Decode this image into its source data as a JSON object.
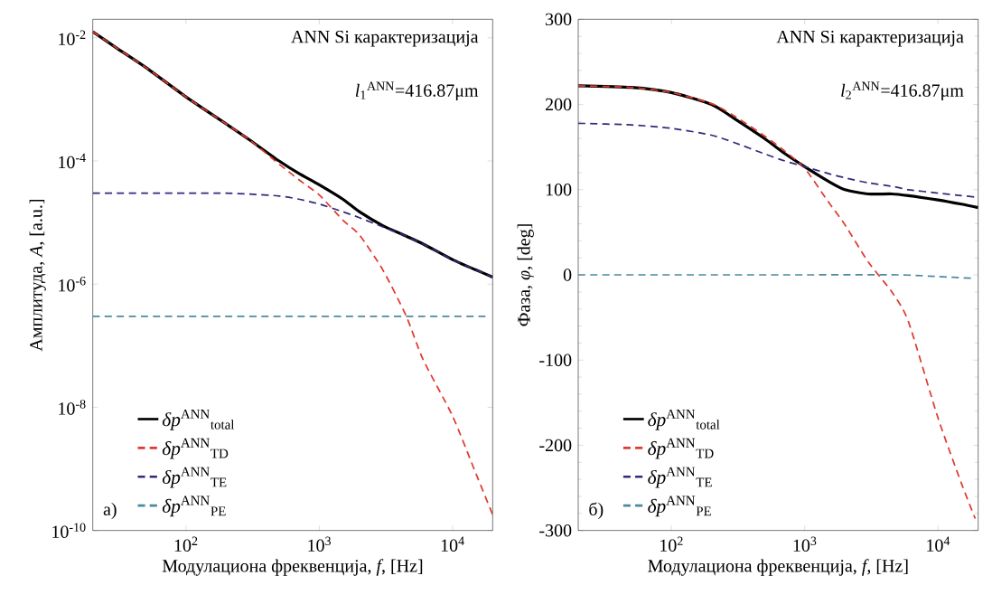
{
  "chart_data": [
    {
      "type": "line",
      "xlabel": "Модулациона фреквенција, *f*, [Hz]",
      "ylabel": "Амплитуда, *A*, [a.u.]",
      "log": "xy",
      "legend": "bottom left",
      "grid": false,
      "xlim": [
        20,
        20000
      ],
      "ylim": [
        1e-10,
        0.02
      ],
      "xticks": [
        {
          "value": 100,
          "label": "10$^{2}$"
        },
        {
          "value": 1000,
          "label": "10$^{3}$"
        },
        {
          "value": 10000,
          "label": "10$^{4}$"
        }
      ],
      "yticks": [
        {
          "value": 1e-10,
          "label": "10$^{-10}$"
        },
        {
          "value": 1e-08,
          "label": "10$^{-8}$"
        },
        {
          "value": 1e-06,
          "label": "10$^{-6}$"
        },
        {
          "value": 0.0001,
          "label": "10$^{-4}$"
        },
        {
          "value": 0.01,
          "label": "10$^{-2}$"
        }
      ],
      "annotations": [
        "ANN Si карактеризација",
        "*l*$_{1}$$^{ANN}$=416.87μm",
        "a)"
      ],
      "x": [
        20,
        30,
        50,
        100,
        200,
        300,
        500,
        700,
        1000,
        1500,
        2000,
        3000,
        4500,
        6000,
        10000,
        15000,
        20000
      ],
      "series": [
        {
          "name": "*δp*$^{ANN}$$_{total}$",
          "color": "#000000",
          "line_style": "solid",
          "values": [
            0.0126,
            0.0069,
            0.0033,
            0.0011,
            0.0004,
            0.00022,
            0.0001,
            6.3e-05,
            4.1e-05,
            2.4e-05,
            1.5e-05,
            8.9e-06,
            6e-06,
            4.5e-06,
            2.5e-06,
            1.7e-06,
            1.3e-06
          ]
        },
        {
          "name": "*δp*$^{ANN}$$_{TD}$",
          "color": "#e03a30",
          "line_style": "dashed",
          "values": [
            0.0126,
            0.0069,
            0.0033,
            0.0011,
            0.0004,
            0.00022,
            8.9e-05,
            5e-05,
            2.8e-05,
            1.1e-05,
            6.3e-06,
            1.7e-06,
            3e-07,
            6e-08,
            7.2e-09,
            8.3e-10,
            1.8e-10
          ]
        },
        {
          "name": "*δp*$^{ANN}$$_{TE}$",
          "color": "#35287a",
          "line_style": "dashed",
          "values": [
            3e-05,
            3e-05,
            3e-05,
            3e-05,
            3e-05,
            2.9e-05,
            2.7e-05,
            2.4e-05,
            2e-05,
            1.5e-05,
            1.2e-05,
            8.5e-06,
            6e-06,
            4.5e-06,
            2.5e-06,
            1.7e-06,
            1.3e-06
          ]
        },
        {
          "name": "*δp*$^{ANN}$$_{PE}$",
          "color": "#4a8aa0",
          "line_style": "dashed",
          "x": [
            20,
            18000
          ],
          "values": [
            3e-07,
            3e-07
          ]
        }
      ]
    },
    {
      "type": "line",
      "xlabel": "Модулациона фреквенција, *f*, [Hz]",
      "ylabel": "Фаза, *φ*, [deg]",
      "log": "x",
      "legend": "bottom left",
      "grid": false,
      "xlim": [
        20,
        20000
      ],
      "ylim": [
        -300,
        300
      ],
      "xticks": [
        {
          "value": 100,
          "label": "10$^{2}$"
        },
        {
          "value": 1000,
          "label": "10$^{3}$"
        },
        {
          "value": 10000,
          "label": "10$^{4}$"
        }
      ],
      "yticks": [
        -300,
        -200,
        -100,
        0,
        100,
        200,
        300
      ],
      "annotations": [
        "ANN Si карактеризација",
        "*l*$_{2}$$^{ANN}$=416.87μm",
        "б)"
      ],
      "x": [
        20,
        50,
        100,
        200,
        300,
        500,
        700,
        1000,
        1500,
        2000,
        3000,
        4500,
        6000,
        10000,
        15000,
        20000
      ],
      "series": [
        {
          "name": "*δp*$^{ANN}$$_{total}$",
          "color": "#000000",
          "line_style": "solid",
          "values": [
            222,
            220,
            214,
            200,
            183,
            160,
            143,
            127,
            110,
            100,
            95,
            95,
            93,
            88,
            83,
            79
          ]
        },
        {
          "name": "*δp*$^{ANN}$$_{TD}$",
          "color": "#e03a30",
          "line_style": "dashed",
          "x": [
            20,
            50,
            100,
            200,
            300,
            500,
            700,
            1000,
            1500,
            2000,
            3000,
            4500,
            6000,
            10000,
            15000,
            19000
          ],
          "values": [
            222,
            220,
            214,
            201,
            186,
            163,
            146,
            125,
            86,
            59,
            15,
            -20,
            -55,
            -168,
            -245,
            -286
          ]
        },
        {
          "name": "*δp*$^{ANN}$$_{TE}$",
          "color": "#35287a",
          "line_style": "dashed",
          "values": [
            178,
            176,
            172,
            164,
            155,
            142,
            134,
            127,
            119,
            114,
            108,
            104,
            100,
            96,
            93,
            91
          ]
        },
        {
          "name": "*δp*$^{ANN}$$_{PE}$",
          "color": "#4a8aa0",
          "line_style": "dashed",
          "x": [
            20,
            1000,
            5000,
            10000,
            18000
          ],
          "values": [
            0,
            0,
            0,
            -2,
            -4
          ]
        }
      ]
    }
  ]
}
